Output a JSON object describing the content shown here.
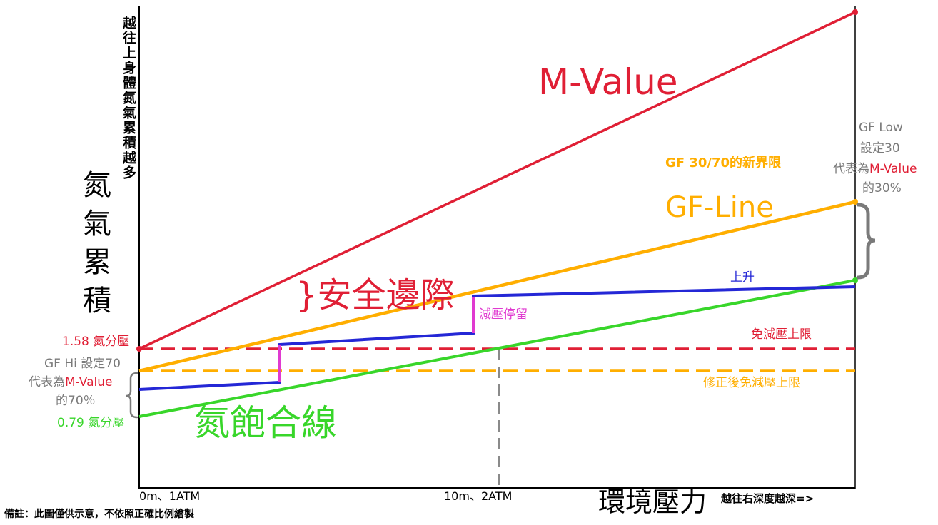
{
  "colors": {
    "m_value": "#e01f35",
    "gf_line": "#ffae00",
    "saturation": "#38d62a",
    "ascent": "#2427d6",
    "stop": "#e03ad0",
    "annotation_grey": "#7a7a7a",
    "axis": "#000000"
  },
  "labels": {
    "y_axis_vertical_note": "越往上身體氮氣累積越多",
    "y_axis_title": "氮氣累積",
    "m_value": "M-Value",
    "gf_new_limit": "GF 30/70的新界限",
    "gf_line": "GF-Line",
    "safety_margin": "}安全邊際",
    "ascent": "上升",
    "deco_stop": "減壓停留",
    "no_deco_limit": "免減壓上限",
    "corrected_no_deco_limit": "修正後免減壓上限",
    "saturation_line": "氮飽合線",
    "pp_158": "1.58 氮分壓",
    "pp_079": "0.79 氮分壓",
    "gf_hi_line1": "GF Hi 設定70",
    "gf_hi_line2_prefix": "代表為",
    "gf_hi_line2_red": "M-Value",
    "gf_hi_line3": "的70％",
    "gf_low_line1": "GF Low",
    "gf_low_line2": "設定30",
    "gf_low_line3_prefix": "代表為",
    "gf_low_line3_red": "M-Value",
    "gf_low_line4": "的30%",
    "x_tick_0": "0m、1ATM",
    "x_tick_10": "10m、2ATM",
    "x_axis_title": "環境壓力",
    "x_axis_note": "越往右深度越深=>",
    "footnote": "備註：此圖僅供示意，不依照正確比例繪製"
  }
}
